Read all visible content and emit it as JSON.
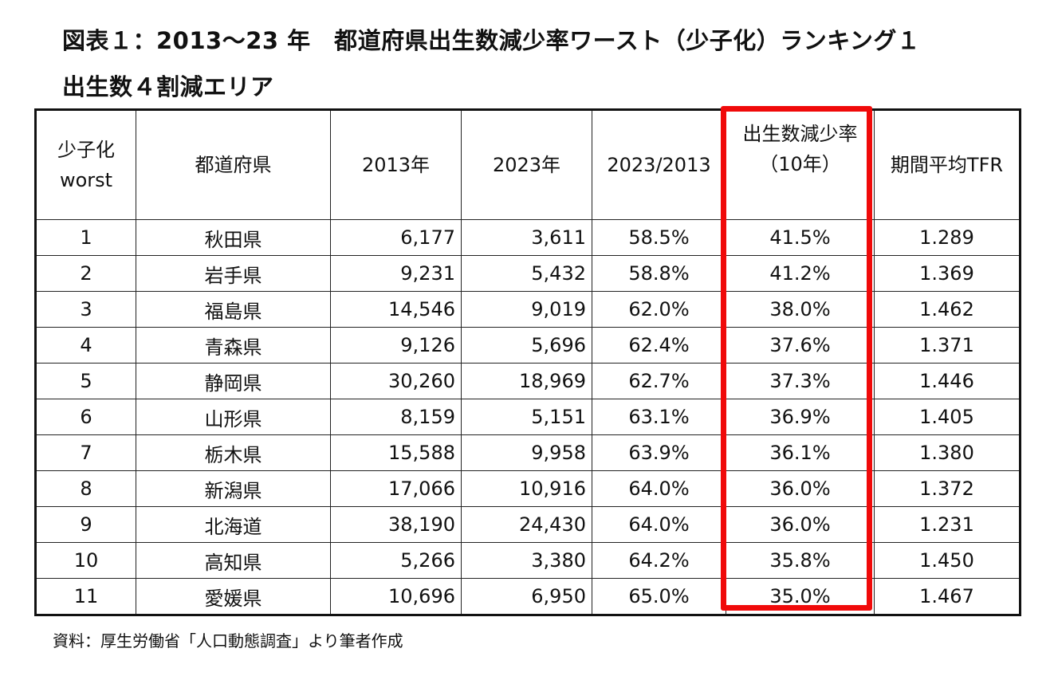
{
  "title_line1": "図表１：2013～23 年　都道府県出生数減少率ワースト（少子化）ランキング１",
  "title_line2": "出生数４割減エリア",
  "headers": {
    "rank_1": "少子化",
    "rank_2": "worst",
    "pref": "都道府県",
    "y2013": "2013年",
    "y2023": "2023年",
    "ratio": "2023/2013",
    "decline_1": "出生数減少率",
    "decline_2": "（10年）",
    "tfr": "期間平均TFR"
  },
  "rows": [
    {
      "rank": "1",
      "pref": "秋田県",
      "b2013": "6,177",
      "b2023": "3,611",
      "ratio": "58.5%",
      "decline": "41.5%",
      "tfr": "1.289"
    },
    {
      "rank": "2",
      "pref": "岩手県",
      "b2013": "9,231",
      "b2023": "5,432",
      "ratio": "58.8%",
      "decline": "41.2%",
      "tfr": "1.369"
    },
    {
      "rank": "3",
      "pref": "福島県",
      "b2013": "14,546",
      "b2023": "9,019",
      "ratio": "62.0%",
      "decline": "38.0%",
      "tfr": "1.462"
    },
    {
      "rank": "4",
      "pref": "青森県",
      "b2013": "9,126",
      "b2023": "5,696",
      "ratio": "62.4%",
      "decline": "37.6%",
      "tfr": "1.371"
    },
    {
      "rank": "5",
      "pref": "静岡県",
      "b2013": "30,260",
      "b2023": "18,969",
      "ratio": "62.7%",
      "decline": "37.3%",
      "tfr": "1.446"
    },
    {
      "rank": "6",
      "pref": "山形県",
      "b2013": "8,159",
      "b2023": "5,151",
      "ratio": "63.1%",
      "decline": "36.9%",
      "tfr": "1.405"
    },
    {
      "rank": "7",
      "pref": "栃木県",
      "b2013": "15,588",
      "b2023": "9,958",
      "ratio": "63.9%",
      "decline": "36.1%",
      "tfr": "1.380"
    },
    {
      "rank": "8",
      "pref": "新潟県",
      "b2013": "17,066",
      "b2023": "10,916",
      "ratio": "64.0%",
      "decline": "36.0%",
      "tfr": "1.372"
    },
    {
      "rank": "9",
      "pref": "北海道",
      "b2013": "38,190",
      "b2023": "24,430",
      "ratio": "64.0%",
      "decline": "36.0%",
      "tfr": "1.231"
    },
    {
      "rank": "10",
      "pref": "高知県",
      "b2013": "5,266",
      "b2023": "3,380",
      "ratio": "64.2%",
      "decline": "35.8%",
      "tfr": "1.450"
    },
    {
      "rank": "11",
      "pref": "愛媛県",
      "b2013": "10,696",
      "b2023": "6,950",
      "ratio": "65.0%",
      "decline": "35.0%",
      "tfr": "1.467"
    }
  ],
  "source": "資料：厚生労働省「人口動態調査」より筆者作成",
  "highlight_color": "#f00a0a"
}
